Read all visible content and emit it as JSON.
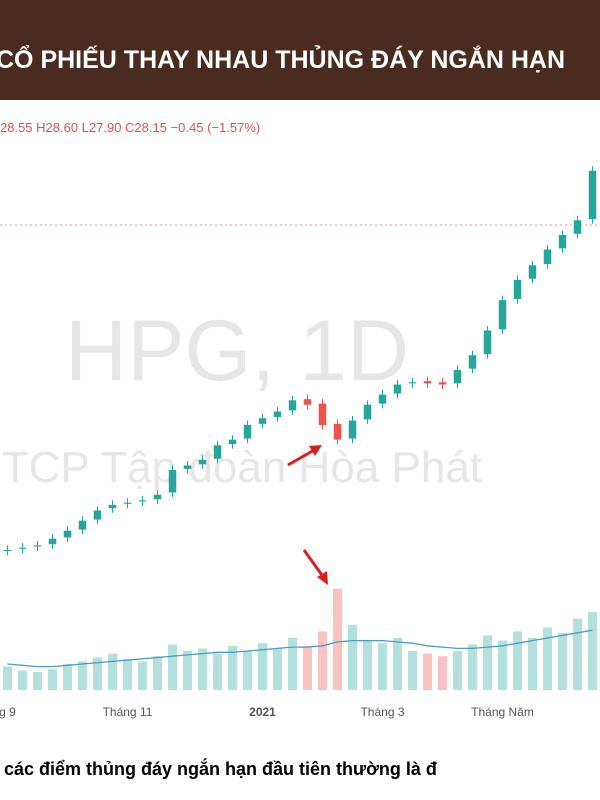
{
  "chart_data": {
    "type": "candlestick",
    "title": "CỔ PHIẾU THAY NHAU THỦNG ĐÁY NGẮN HẠN",
    "ohlc_label": "28.55 H28.60 L27.90 C28.15 −0.45 (−1.57%)",
    "watermark": "HPG, 1D",
    "watermark_subtitle": "CTCP Tập đoàn Hòa Phát",
    "caption": ", các điểm thủng đáy ngắn hạn đầu tiên thường là đ",
    "categories": [
      "g 9",
      null,
      null,
      null,
      null,
      null,
      null,
      null,
      "Tháng 11",
      null,
      null,
      null,
      null,
      null,
      null,
      null,
      null,
      "2021",
      null,
      null,
      null,
      null,
      null,
      null,
      null,
      "Tháng 3",
      null,
      null,
      null,
      null,
      null,
      null,
      null,
      "Tháng Năm",
      null,
      null,
      null,
      null,
      null,
      null
    ],
    "open": [
      10.8,
      11.0,
      11.2,
      11.4,
      12.0,
      12.7,
      13.6,
      14.6,
      15.0,
      15.2,
      15.4,
      16.0,
      18.1,
      18.5,
      19.0,
      20.3,
      20.8,
      22.1,
      22.7,
      23.3,
      24.3,
      23.9,
      22.1,
      20.8,
      22.5,
      23.9,
      24.8,
      25.7,
      25.9,
      25.8,
      25.7,
      27.0,
      28.3,
      30.5,
      33.2,
      35.0,
      36.3,
      37.7,
      39.0,
      40.3
    ],
    "high": [
      11.3,
      11.5,
      11.7,
      12.3,
      13.0,
      13.9,
      14.8,
      15.3,
      15.5,
      15.7,
      16.2,
      18.4,
      18.8,
      19.3,
      20.6,
      21.1,
      22.4,
      23.0,
      23.6,
      24.6,
      24.7,
      24.3,
      22.5,
      22.8,
      24.2,
      25.1,
      26.0,
      26.2,
      26.3,
      26.2,
      27.3,
      28.6,
      30.8,
      33.5,
      35.3,
      36.6,
      38.0,
      39.3,
      40.6,
      45.0
    ],
    "low": [
      10.4,
      10.6,
      10.8,
      11.0,
      11.6,
      12.3,
      13.2,
      14.2,
      14.6,
      14.8,
      15.0,
      15.6,
      17.7,
      18.1,
      18.6,
      19.9,
      20.4,
      21.7,
      22.3,
      22.9,
      23.4,
      21.6,
      20.3,
      20.4,
      22.1,
      23.5,
      24.4,
      25.3,
      25.3,
      25.2,
      25.3,
      26.6,
      27.9,
      30.1,
      32.8,
      34.6,
      35.9,
      37.3,
      38.6,
      39.9
    ],
    "close": [
      10.9,
      11.1,
      11.3,
      11.9,
      12.6,
      13.5,
      14.4,
      14.9,
      15.1,
      15.3,
      15.8,
      18.0,
      18.4,
      18.9,
      20.2,
      20.7,
      22.0,
      22.6,
      23.2,
      24.2,
      23.8,
      22.0,
      20.7,
      22.4,
      23.8,
      24.7,
      25.6,
      25.8,
      25.7,
      25.6,
      26.9,
      28.2,
      30.4,
      33.1,
      34.9,
      36.2,
      37.6,
      38.9,
      40.2,
      44.6
    ],
    "volume": [
      18,
      15,
      14,
      16,
      20,
      22,
      25,
      28,
      24,
      22,
      26,
      35,
      30,
      32,
      28,
      34,
      30,
      36,
      32,
      40,
      34,
      45,
      78,
      50,
      38,
      36,
      40,
      30,
      28,
      26,
      30,
      35,
      42,
      38,
      45,
      40,
      48,
      44,
      55,
      60
    ],
    "volume_ma": [
      20,
      19,
      18,
      18,
      19,
      20,
      21,
      22,
      23,
      24,
      25,
      26,
      27,
      28,
      29,
      29,
      30,
      31,
      32,
      33,
      33,
      34,
      37,
      38,
      38,
      38,
      37,
      36,
      34,
      33,
      32,
      32,
      33,
      34,
      36,
      38,
      40,
      42,
      44,
      46
    ],
    "up_color": "#26a69a",
    "down_color": "#ef5350",
    "ma_color": "#4a9cc9",
    "ylim": [
      10,
      50
    ],
    "y2lim": [
      0,
      100
    ]
  }
}
